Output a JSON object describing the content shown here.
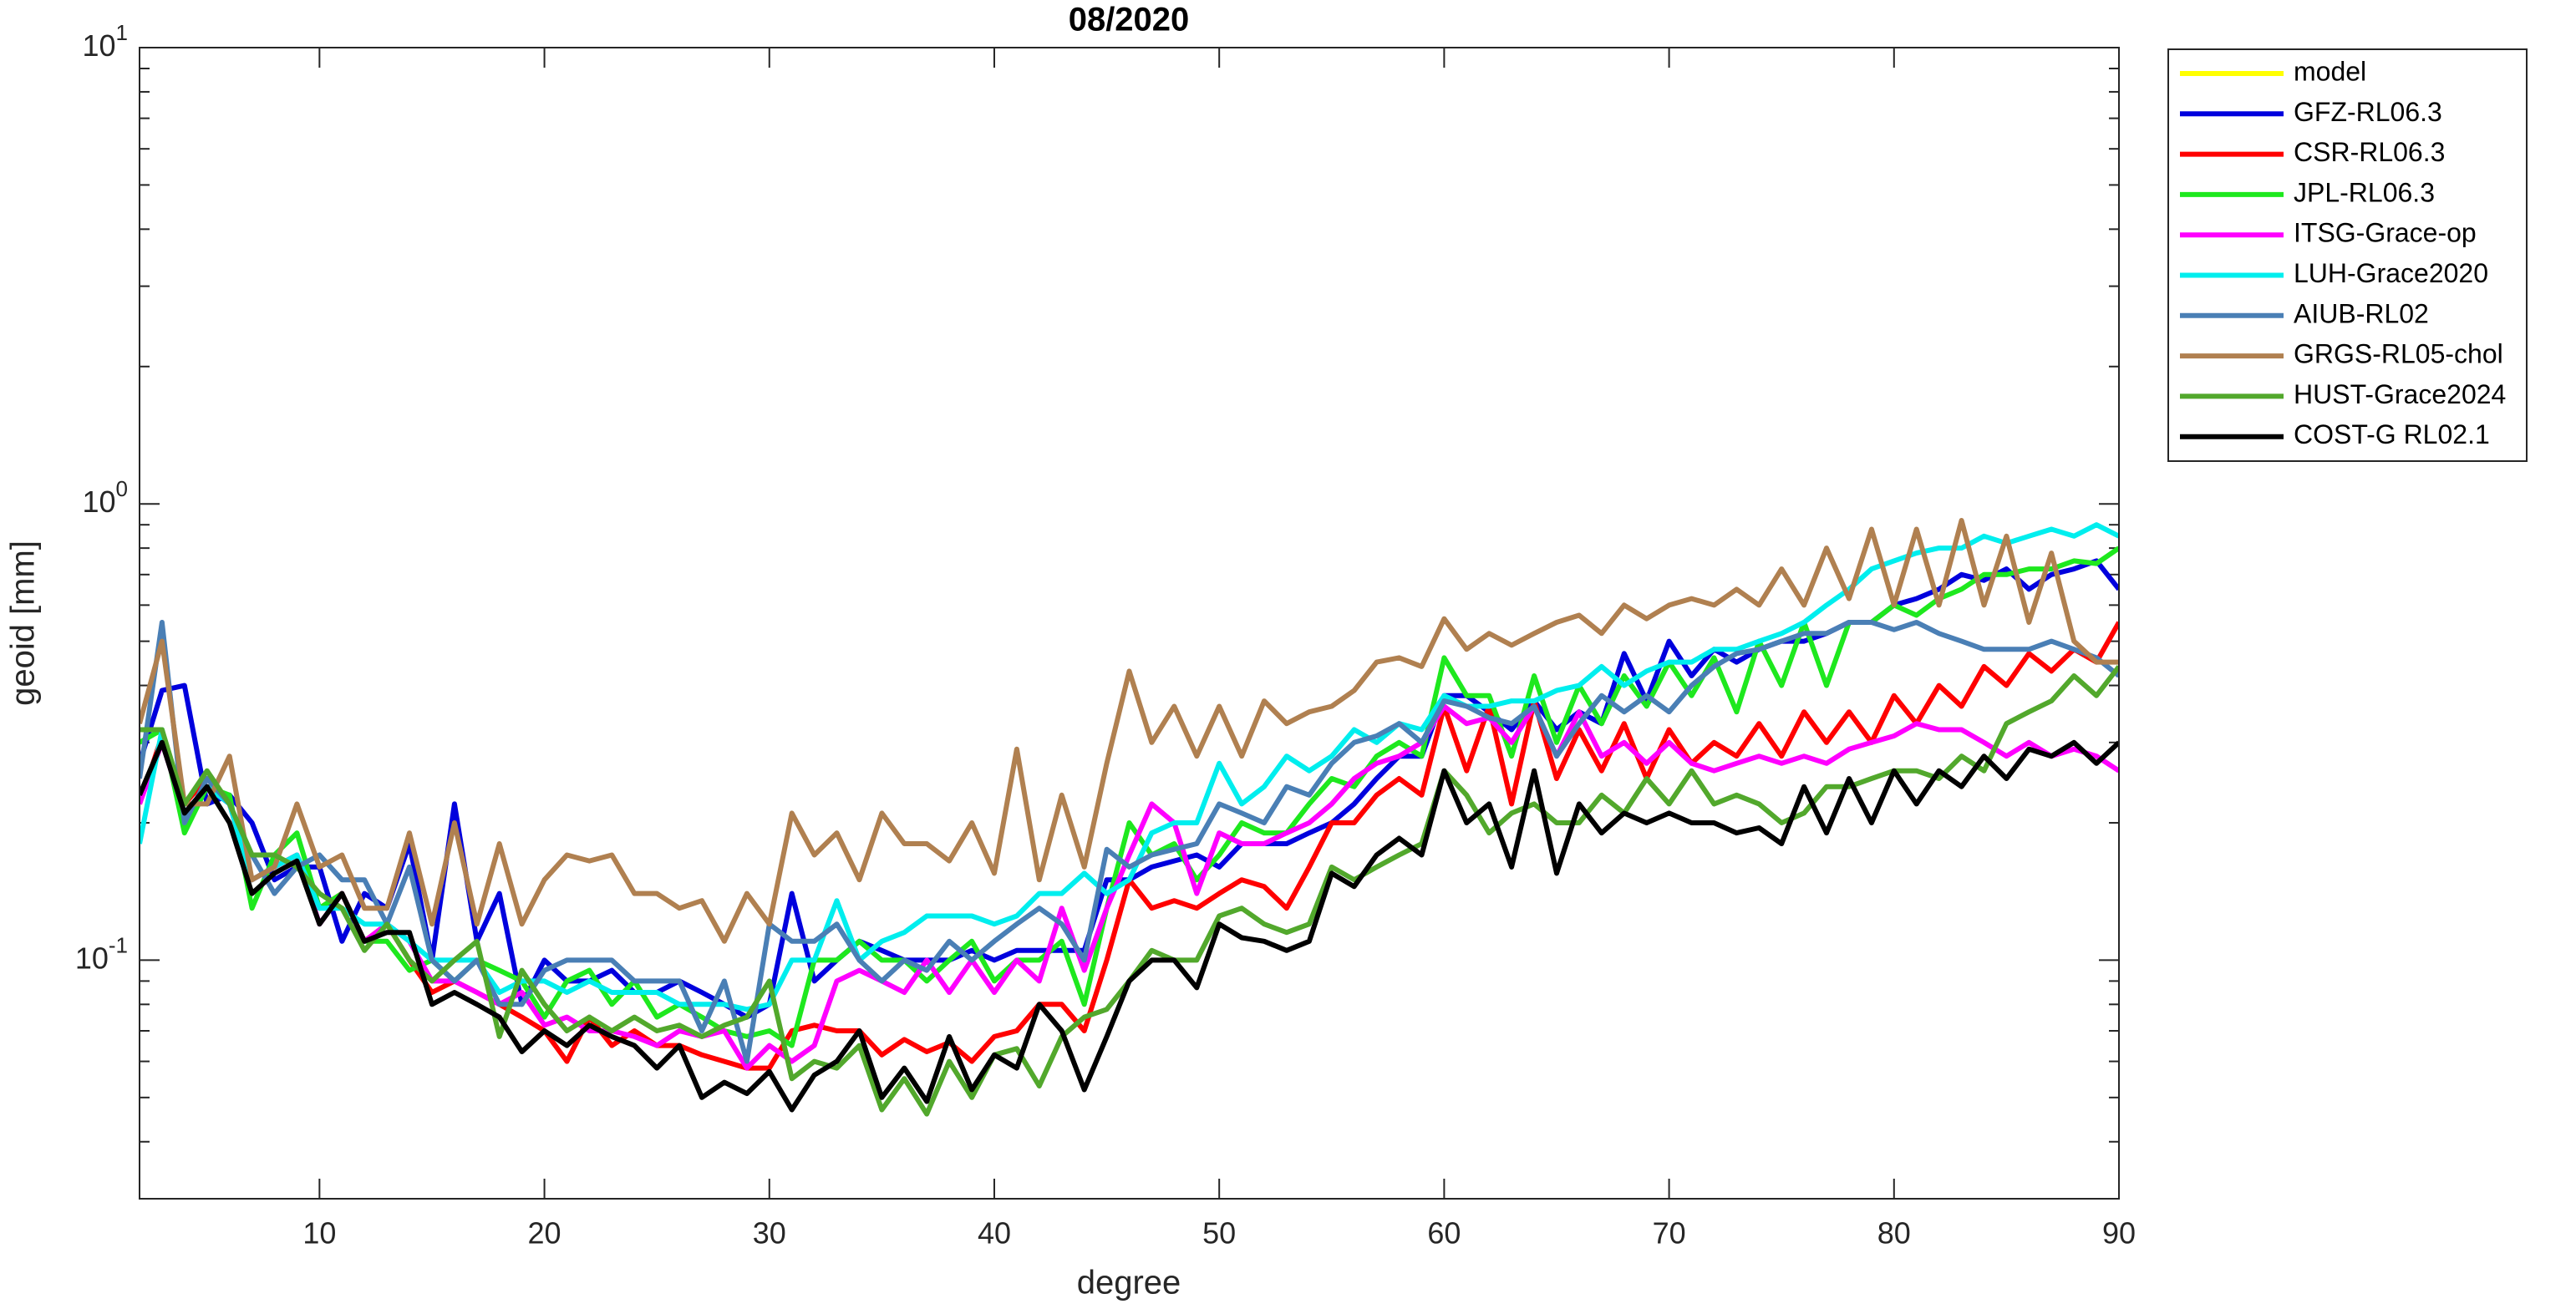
{
  "chart_data": {
    "type": "line",
    "title": "08/2020",
    "xlabel": "degree",
    "ylabel": "geoid [mm]",
    "log_y": true,
    "xlim": [
      2,
      90
    ],
    "xticks": [
      10,
      20,
      30,
      40,
      50,
      60,
      70,
      80,
      90
    ],
    "ylim": [
      0.03,
      10
    ],
    "yticks": [
      {
        "value": 0.1,
        "label": "10^-1"
      },
      {
        "value": 1,
        "label": "10^0"
      },
      {
        "value": 10,
        "label": "10^1"
      }
    ],
    "yminorticks": [
      0.04,
      0.05,
      0.06,
      0.07,
      0.08,
      0.09,
      0.2,
      0.3,
      0.4,
      0.5,
      0.6,
      0.7,
      0.8,
      0.9,
      2,
      3,
      4,
      5,
      6,
      7,
      8,
      9
    ],
    "legend": "outside-right",
    "x": [
      2,
      3,
      4,
      5,
      6,
      7,
      8,
      9,
      10,
      11,
      12,
      13,
      14,
      15,
      16,
      17,
      18,
      19,
      20,
      21,
      22,
      23,
      24,
      25,
      26,
      27,
      28,
      29,
      30,
      31,
      32,
      33,
      34,
      35,
      36,
      37,
      38,
      39,
      40,
      41,
      42,
      43,
      44,
      45,
      46,
      47,
      48,
      49,
      50,
      51,
      52,
      53,
      54,
      55,
      56,
      57,
      58,
      59,
      60,
      61,
      62,
      63,
      64,
      65,
      66,
      67,
      68,
      69,
      70,
      71,
      72,
      73,
      74,
      75,
      76,
      77,
      78,
      79,
      80,
      81,
      82,
      83,
      84,
      85,
      86,
      87,
      88,
      89,
      90
    ],
    "series": [
      {
        "name": "model",
        "color": "#ffff00",
        "values": [
          null,
          null,
          null,
          null,
          null,
          null,
          null,
          null,
          null,
          null,
          null,
          null,
          null,
          null,
          null,
          null,
          null,
          null,
          null,
          null,
          null,
          null,
          null,
          null,
          null,
          null,
          null,
          null,
          null,
          null,
          null,
          null,
          null,
          null,
          null,
          null,
          null,
          null,
          null,
          null,
          null,
          null,
          null,
          null,
          null,
          null,
          null,
          null,
          null,
          null,
          null,
          null,
          null,
          null,
          null,
          null,
          null,
          null,
          null,
          null,
          null,
          null,
          null,
          null,
          null,
          null,
          null,
          null,
          null,
          null,
          null,
          null,
          null,
          null,
          null,
          null,
          null,
          null,
          null,
          null,
          null,
          null,
          null,
          null,
          null,
          null,
          null,
          null,
          null
        ]
      },
      {
        "name": "GFZ-RL06.3",
        "color": "#0000dd",
        "values": [
          0.27,
          0.39,
          0.4,
          0.22,
          0.23,
          0.2,
          0.15,
          0.16,
          0.16,
          0.11,
          0.14,
          0.13,
          0.18,
          0.1,
          0.22,
          0.11,
          0.14,
          0.08,
          0.1,
          0.09,
          0.09,
          0.095,
          0.085,
          0.085,
          0.09,
          0.085,
          0.08,
          0.075,
          0.08,
          0.14,
          0.09,
          0.1,
          0.11,
          0.105,
          0.1,
          0.1,
          0.1,
          0.105,
          0.1,
          0.105,
          0.105,
          0.105,
          0.105,
          0.15,
          0.15,
          0.16,
          0.165,
          0.17,
          0.16,
          0.18,
          0.18,
          0.18,
          0.19,
          0.2,
          0.22,
          0.25,
          0.28,
          0.28,
          0.38,
          0.38,
          0.35,
          0.32,
          0.37,
          0.32,
          0.35,
          0.33,
          0.47,
          0.37,
          0.5,
          0.42,
          0.48,
          0.45,
          0.48,
          0.5,
          0.5,
          0.52,
          0.55,
          0.55,
          0.6,
          0.62,
          0.65,
          0.7,
          0.68,
          0.72,
          0.65,
          0.7,
          0.72,
          0.75,
          0.65
        ]
      },
      {
        "name": "CSR-RL06.3",
        "color": "#ff0000",
        "values": [
          0.22,
          0.31,
          0.22,
          0.25,
          0.22,
          0.15,
          0.16,
          0.17,
          0.13,
          0.14,
          0.11,
          0.12,
          0.1,
          0.085,
          0.09,
          0.085,
          0.08,
          0.075,
          0.07,
          0.06,
          0.075,
          0.065,
          0.07,
          0.065,
          0.065,
          0.062,
          0.06,
          0.058,
          0.058,
          0.07,
          0.072,
          0.07,
          0.07,
          0.062,
          0.067,
          0.063,
          0.066,
          0.06,
          0.068,
          0.07,
          0.08,
          0.08,
          0.07,
          0.1,
          0.15,
          0.13,
          0.135,
          0.13,
          0.14,
          0.15,
          0.145,
          0.13,
          0.16,
          0.2,
          0.2,
          0.23,
          0.25,
          0.23,
          0.36,
          0.26,
          0.36,
          0.22,
          0.37,
          0.25,
          0.32,
          0.26,
          0.33,
          0.25,
          0.32,
          0.27,
          0.3,
          0.28,
          0.33,
          0.28,
          0.35,
          0.3,
          0.35,
          0.3,
          0.38,
          0.33,
          0.4,
          0.36,
          0.44,
          0.4,
          0.47,
          0.43,
          0.48,
          0.45,
          0.55
        ]
      },
      {
        "name": "JPL-RL06.3",
        "color": "#1ee81e",
        "values": [
          0.3,
          0.32,
          0.19,
          0.24,
          0.23,
          0.13,
          0.17,
          0.19,
          0.13,
          0.14,
          0.11,
          0.11,
          0.095,
          0.1,
          0.09,
          0.1,
          0.095,
          0.09,
          0.075,
          0.09,
          0.095,
          0.08,
          0.09,
          0.075,
          0.08,
          0.075,
          0.07,
          0.068,
          0.07,
          0.065,
          0.1,
          0.1,
          0.11,
          0.1,
          0.1,
          0.09,
          0.1,
          0.11,
          0.09,
          0.1,
          0.1,
          0.11,
          0.08,
          0.13,
          0.2,
          0.17,
          0.18,
          0.15,
          0.17,
          0.2,
          0.19,
          0.19,
          0.22,
          0.25,
          0.24,
          0.28,
          0.3,
          0.28,
          0.46,
          0.38,
          0.38,
          0.28,
          0.42,
          0.3,
          0.4,
          0.33,
          0.42,
          0.36,
          0.45,
          0.38,
          0.46,
          0.35,
          0.5,
          0.4,
          0.55,
          0.4,
          0.55,
          0.55,
          0.6,
          0.57,
          0.62,
          0.65,
          0.7,
          0.7,
          0.72,
          0.72,
          0.75,
          0.74,
          0.8
        ]
      },
      {
        "name": "ITSG-Grace-op",
        "color": "#ff00ff",
        "values": [
          0.22,
          0.3,
          0.21,
          0.24,
          0.22,
          0.15,
          0.16,
          0.17,
          0.12,
          0.14,
          0.11,
          0.12,
          0.11,
          0.09,
          0.09,
          0.085,
          0.08,
          0.085,
          0.072,
          0.075,
          0.07,
          0.07,
          0.068,
          0.065,
          0.07,
          0.068,
          0.07,
          0.058,
          0.065,
          0.06,
          0.065,
          0.09,
          0.095,
          0.09,
          0.085,
          0.1,
          0.085,
          0.1,
          0.085,
          0.1,
          0.09,
          0.13,
          0.095,
          0.13,
          0.17,
          0.22,
          0.2,
          0.14,
          0.19,
          0.18,
          0.18,
          0.19,
          0.2,
          0.22,
          0.25,
          0.27,
          0.28,
          0.3,
          0.36,
          0.33,
          0.34,
          0.3,
          0.36,
          0.28,
          0.35,
          0.28,
          0.3,
          0.27,
          0.3,
          0.27,
          0.26,
          0.27,
          0.28,
          0.27,
          0.28,
          0.27,
          0.29,
          0.3,
          0.31,
          0.33,
          0.32,
          0.32,
          0.3,
          0.28,
          0.3,
          0.28,
          0.29,
          0.28,
          0.26
        ]
      },
      {
        "name": "LUH-Grace2020",
        "color": "#00eeee",
        "values": [
          0.18,
          0.32,
          0.21,
          0.24,
          0.22,
          0.15,
          0.16,
          0.17,
          0.13,
          0.13,
          0.12,
          0.12,
          0.11,
          0.1,
          0.1,
          0.1,
          0.085,
          0.09,
          0.09,
          0.085,
          0.09,
          0.085,
          0.085,
          0.085,
          0.08,
          0.08,
          0.08,
          0.078,
          0.08,
          0.1,
          0.1,
          0.135,
          0.1,
          0.11,
          0.115,
          0.125,
          0.125,
          0.125,
          0.12,
          0.125,
          0.14,
          0.14,
          0.155,
          0.14,
          0.15,
          0.19,
          0.2,
          0.2,
          0.27,
          0.22,
          0.24,
          0.28,
          0.26,
          0.28,
          0.32,
          0.3,
          0.33,
          0.32,
          0.38,
          0.36,
          0.36,
          0.37,
          0.37,
          0.39,
          0.4,
          0.44,
          0.4,
          0.43,
          0.45,
          0.45,
          0.48,
          0.48,
          0.5,
          0.52,
          0.55,
          0.6,
          0.65,
          0.72,
          0.75,
          0.78,
          0.8,
          0.8,
          0.85,
          0.82,
          0.85,
          0.88,
          0.85,
          0.9,
          0.85
        ]
      },
      {
        "name": "AIUB-RL02",
        "color": "#4a7fb5",
        "values": [
          0.25,
          0.55,
          0.2,
          0.25,
          0.22,
          0.17,
          0.14,
          0.16,
          0.17,
          0.15,
          0.15,
          0.12,
          0.16,
          0.1,
          0.09,
          0.1,
          0.08,
          0.08,
          0.095,
          0.1,
          0.1,
          0.1,
          0.09,
          0.09,
          0.09,
          0.07,
          0.09,
          0.06,
          0.12,
          0.11,
          0.11,
          0.12,
          0.1,
          0.09,
          0.1,
          0.095,
          0.11,
          0.1,
          0.11,
          0.12,
          0.13,
          0.12,
          0.1,
          0.175,
          0.16,
          0.17,
          0.175,
          0.18,
          0.22,
          0.21,
          0.2,
          0.24,
          0.23,
          0.27,
          0.3,
          0.31,
          0.33,
          0.3,
          0.37,
          0.36,
          0.34,
          0.33,
          0.36,
          0.28,
          0.33,
          0.38,
          0.35,
          0.38,
          0.35,
          0.4,
          0.44,
          0.47,
          0.48,
          0.5,
          0.52,
          0.52,
          0.55,
          0.55,
          0.53,
          0.55,
          0.52,
          0.5,
          0.48,
          0.48,
          0.48,
          0.5,
          0.48,
          0.46,
          0.42
        ]
      },
      {
        "name": "GRGS-RL05-chol",
        "color": "#b08050",
        "values": [
          0.33,
          0.5,
          0.22,
          0.22,
          0.28,
          0.15,
          0.16,
          0.22,
          0.16,
          0.17,
          0.13,
          0.13,
          0.19,
          0.12,
          0.2,
          0.12,
          0.18,
          0.12,
          0.15,
          0.17,
          0.165,
          0.17,
          0.14,
          0.14,
          0.13,
          0.135,
          0.11,
          0.14,
          0.12,
          0.21,
          0.17,
          0.19,
          0.15,
          0.21,
          0.18,
          0.18,
          0.165,
          0.2,
          0.155,
          0.29,
          0.15,
          0.23,
          0.16,
          0.27,
          0.43,
          0.3,
          0.36,
          0.28,
          0.36,
          0.28,
          0.37,
          0.33,
          0.35,
          0.36,
          0.39,
          0.45,
          0.46,
          0.44,
          0.56,
          0.48,
          0.52,
          0.49,
          0.52,
          0.55,
          0.57,
          0.52,
          0.6,
          0.56,
          0.6,
          0.62,
          0.6,
          0.65,
          0.6,
          0.72,
          0.6,
          0.8,
          0.62,
          0.88,
          0.6,
          0.88,
          0.6,
          0.92,
          0.6,
          0.85,
          0.55,
          0.78,
          0.5,
          0.45,
          0.45
        ]
      },
      {
        "name": "HUST-Grace2024",
        "color": "#52a82c",
        "values": [
          0.32,
          0.32,
          0.22,
          0.26,
          0.22,
          0.17,
          0.17,
          0.16,
          0.14,
          0.13,
          0.105,
          0.12,
          0.1,
          0.09,
          0.1,
          0.11,
          0.068,
          0.095,
          0.08,
          0.07,
          0.075,
          0.07,
          0.075,
          0.07,
          0.072,
          0.068,
          0.072,
          0.075,
          0.09,
          0.055,
          0.06,
          0.058,
          0.065,
          0.047,
          0.055,
          0.046,
          0.06,
          0.05,
          0.062,
          0.064,
          0.053,
          0.068,
          0.075,
          0.078,
          0.09,
          0.105,
          0.1,
          0.1,
          0.125,
          0.13,
          0.12,
          0.115,
          0.12,
          0.16,
          0.15,
          0.16,
          0.17,
          0.18,
          0.26,
          0.23,
          0.19,
          0.21,
          0.22,
          0.2,
          0.2,
          0.23,
          0.21,
          0.25,
          0.22,
          0.26,
          0.22,
          0.23,
          0.22,
          0.2,
          0.21,
          0.24,
          0.24,
          0.25,
          0.26,
          0.26,
          0.25,
          0.28,
          0.26,
          0.33,
          0.35,
          0.37,
          0.42,
          0.38,
          0.44
        ]
      },
      {
        "name": "COST-G RL02.1",
        "color": "#000000",
        "values": [
          0.23,
          0.3,
          0.21,
          0.24,
          0.2,
          0.14,
          0.155,
          0.165,
          0.12,
          0.14,
          0.11,
          0.115,
          0.115,
          0.08,
          0.085,
          0.08,
          0.075,
          0.063,
          0.07,
          0.065,
          0.072,
          0.068,
          0.065,
          0.058,
          0.065,
          0.05,
          0.054,
          0.051,
          0.057,
          0.047,
          0.056,
          0.06,
          0.07,
          0.05,
          0.058,
          0.049,
          0.068,
          0.052,
          0.062,
          0.058,
          0.08,
          0.07,
          0.052,
          0.068,
          0.09,
          0.1,
          0.1,
          0.087,
          0.12,
          0.112,
          0.11,
          0.105,
          0.11,
          0.155,
          0.145,
          0.17,
          0.185,
          0.17,
          0.26,
          0.2,
          0.22,
          0.16,
          0.26,
          0.155,
          0.22,
          0.19,
          0.21,
          0.2,
          0.21,
          0.2,
          0.2,
          0.19,
          0.195,
          0.18,
          0.24,
          0.19,
          0.25,
          0.2,
          0.26,
          0.22,
          0.26,
          0.24,
          0.28,
          0.25,
          0.29,
          0.28,
          0.3,
          0.27,
          0.3
        ]
      }
    ]
  }
}
